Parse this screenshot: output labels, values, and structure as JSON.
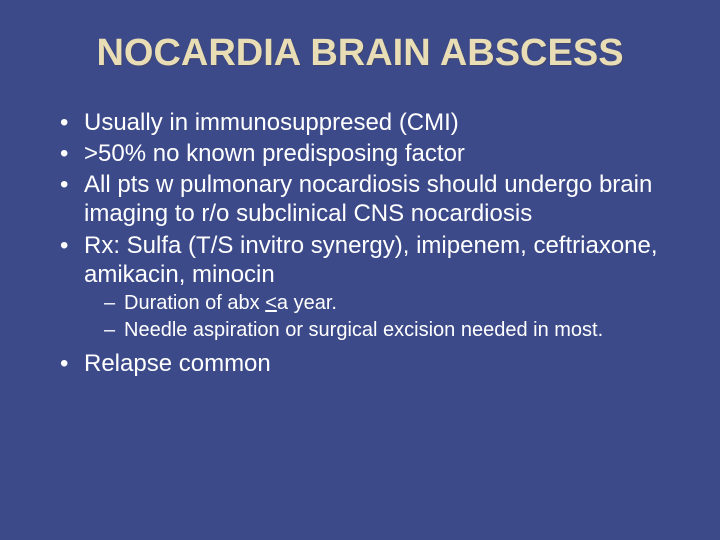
{
  "slide": {
    "background_color": "#3c4a8a",
    "title_color": "#e8ddb5",
    "text_color": "#ffffff",
    "title_fontsize": 38,
    "body_fontsize": 24,
    "sub_fontsize": 20,
    "title": "NOCARDIA BRAIN ABSCESS",
    "bullets": [
      {
        "text": "Usually in immunosuppresed (CMI)"
      },
      {
        "text": ">50% no known predisposing factor"
      },
      {
        "text": "All pts w pulmonary nocardiosis should undergo brain imaging to r/o subclinical CNS nocardiosis"
      },
      {
        "text": "Rx: Sulfa (T/S invitro synergy), imipenem, ceftriaxone, amikacin, minocin",
        "sub": [
          {
            "pre": "Duration of abx ",
            "underline": "<",
            "post": "a year."
          },
          {
            "text": " Needle aspiration or surgical excision needed in most."
          }
        ]
      },
      {
        "text": "Relapse common"
      }
    ]
  }
}
